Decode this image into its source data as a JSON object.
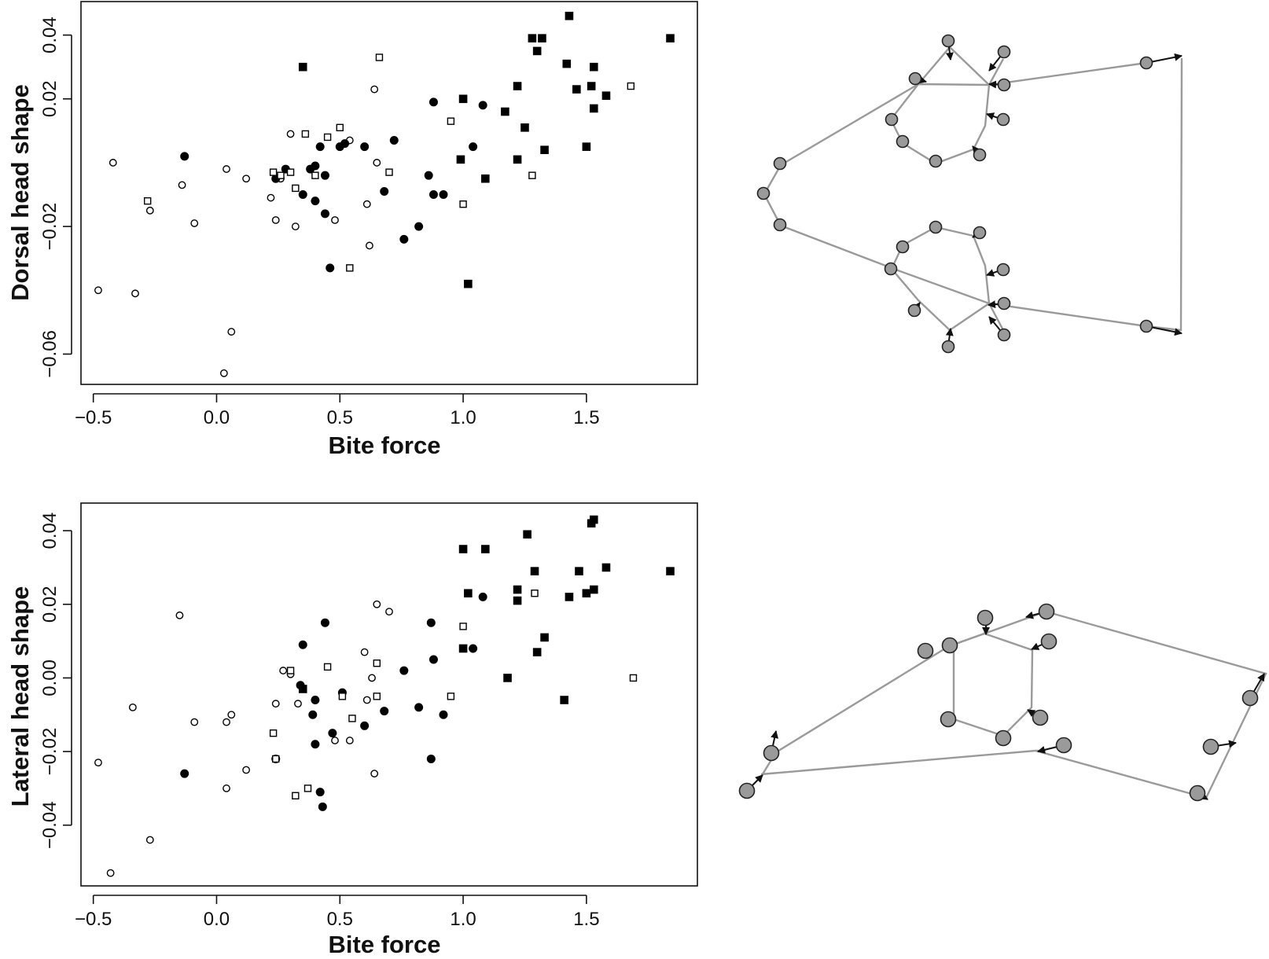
{
  "chart_data": [
    {
      "type": "scatter",
      "xlabel": "Bite force",
      "ylabel": "Dorsal head shape",
      "xlim": [
        -0.55,
        1.95
      ],
      "ylim": [
        -0.0695,
        0.0505
      ],
      "xticks": [
        "−0.5",
        "0.0",
        "0.5",
        "1.0",
        "1.5"
      ],
      "xtick_values": [
        -0.5,
        0,
        0.5,
        1.0,
        1.5
      ],
      "yticks": [
        "−0.06",
        "−0.02",
        "0.02",
        "0.04"
      ],
      "ytick_values": [
        -0.06,
        -0.02,
        0.02,
        0.04
      ],
      "grid": false,
      "marker_styles": {
        "open-circle": {
          "shape": "circle",
          "filled": false
        },
        "filled-circle": {
          "shape": "circle",
          "filled": true
        },
        "open-square": {
          "shape": "square",
          "filled": false
        },
        "filled-square": {
          "shape": "square",
          "filled": true
        }
      },
      "series": [
        {
          "marker": "open-circle",
          "points": [
            [
              -0.48,
              -0.04
            ],
            [
              -0.42,
              0.0
            ],
            [
              -0.33,
              -0.041
            ],
            [
              -0.27,
              -0.015
            ],
            [
              -0.14,
              -0.007
            ],
            [
              -0.09,
              -0.019
            ],
            [
              0.03,
              -0.066
            ],
            [
              0.04,
              -0.002
            ],
            [
              0.06,
              -0.053
            ],
            [
              0.12,
              -0.005
            ],
            [
              0.24,
              -0.018
            ],
            [
              0.26,
              -0.005
            ],
            [
              0.3,
              0.009
            ],
            [
              0.32,
              -0.02
            ],
            [
              0.48,
              -0.018
            ],
            [
              0.54,
              0.007
            ],
            [
              0.61,
              -0.013
            ],
            [
              0.62,
              -0.026
            ],
            [
              0.64,
              0.023
            ],
            [
              0.65,
              0.0
            ],
            [
              0.22,
              -0.011
            ]
          ]
        },
        {
          "marker": "filled-circle",
          "points": [
            [
              -0.13,
              0.002
            ],
            [
              0.24,
              -0.005
            ],
            [
              0.28,
              -0.002
            ],
            [
              0.35,
              -0.01
            ],
            [
              0.38,
              -0.002
            ],
            [
              0.4,
              -0.001
            ],
            [
              0.4,
              -0.012
            ],
            [
              0.42,
              0.005
            ],
            [
              0.44,
              -0.004
            ],
            [
              0.44,
              -0.016
            ],
            [
              0.46,
              -0.033
            ],
            [
              0.5,
              0.005
            ],
            [
              0.52,
              0.006
            ],
            [
              0.6,
              0.005
            ],
            [
              0.68,
              -0.009
            ],
            [
              0.72,
              0.007
            ],
            [
              0.76,
              -0.024
            ],
            [
              0.82,
              -0.02
            ],
            [
              0.86,
              -0.004
            ],
            [
              0.88,
              0.019
            ],
            [
              0.88,
              -0.01
            ],
            [
              0.92,
              -0.01
            ],
            [
              1.04,
              0.005
            ],
            [
              1.08,
              0.018
            ]
          ]
        },
        {
          "marker": "open-square",
          "points": [
            [
              -0.28,
              -0.012
            ],
            [
              0.23,
              -0.003
            ],
            [
              0.26,
              -0.004
            ],
            [
              0.3,
              -0.003
            ],
            [
              0.32,
              -0.008
            ],
            [
              0.36,
              0.009
            ],
            [
              0.4,
              -0.004
            ],
            [
              0.45,
              0.008
            ],
            [
              0.5,
              0.011
            ],
            [
              0.54,
              -0.033
            ],
            [
              0.66,
              0.033
            ],
            [
              0.7,
              -0.003
            ],
            [
              0.95,
              0.013
            ],
            [
              1.0,
              -0.013
            ],
            [
              1.28,
              -0.004
            ],
            [
              1.68,
              0.024
            ]
          ]
        },
        {
          "marker": "filled-square",
          "points": [
            [
              0.35,
              0.03
            ],
            [
              0.99,
              0.001
            ],
            [
              1.0,
              0.02
            ],
            [
              1.02,
              -0.038
            ],
            [
              1.09,
              -0.005
            ],
            [
              1.17,
              0.016
            ],
            [
              1.22,
              0.024
            ],
            [
              1.22,
              0.001
            ],
            [
              1.25,
              0.011
            ],
            [
              1.28,
              0.039
            ],
            [
              1.3,
              0.035
            ],
            [
              1.32,
              0.039
            ],
            [
              1.33,
              0.004
            ],
            [
              1.42,
              0.031
            ],
            [
              1.43,
              0.046
            ],
            [
              1.46,
              0.023
            ],
            [
              1.5,
              0.005
            ],
            [
              1.52,
              0.024
            ],
            [
              1.53,
              0.03
            ],
            [
              1.53,
              0.017
            ],
            [
              1.58,
              0.021
            ],
            [
              1.84,
              0.039
            ]
          ]
        }
      ]
    },
    {
      "type": "scatter",
      "xlabel": "Bite force",
      "ylabel": "Lateral head shape",
      "xlim": [
        -0.55,
        1.95
      ],
      "ylim": [
        -0.0565,
        0.0475
      ],
      "xticks": [
        "−0.5",
        "0.0",
        "0.5",
        "1.0",
        "1.5"
      ],
      "xtick_values": [
        -0.5,
        0,
        0.5,
        1.0,
        1.5
      ],
      "yticks": [
        "−0.04",
        "−0.02",
        "0.00",
        "0.02",
        "0.04"
      ],
      "ytick_values": [
        -0.04,
        -0.02,
        0.0,
        0.02,
        0.04
      ],
      "grid": false,
      "marker_styles": {
        "open-circle": {
          "shape": "circle",
          "filled": false
        },
        "filled-circle": {
          "shape": "circle",
          "filled": true
        },
        "open-square": {
          "shape": "square",
          "filled": false
        },
        "filled-square": {
          "shape": "square",
          "filled": true
        }
      },
      "series": [
        {
          "marker": "open-circle",
          "points": [
            [
              -0.48,
              -0.023
            ],
            [
              -0.43,
              -0.053
            ],
            [
              -0.34,
              -0.008
            ],
            [
              -0.27,
              -0.044
            ],
            [
              -0.15,
              0.017
            ],
            [
              -0.09,
              -0.012
            ],
            [
              0.04,
              -0.012
            ],
            [
              0.06,
              -0.01
            ],
            [
              0.04,
              -0.03
            ],
            [
              0.12,
              -0.025
            ],
            [
              0.24,
              -0.007
            ],
            [
              0.27,
              0.002
            ],
            [
              0.3,
              0.001
            ],
            [
              0.33,
              -0.007
            ],
            [
              0.48,
              -0.017
            ],
            [
              0.54,
              -0.017
            ],
            [
              0.6,
              0.007
            ],
            [
              0.61,
              -0.006
            ],
            [
              0.63,
              0.0
            ],
            [
              0.64,
              -0.026
            ],
            [
              0.65,
              0.02
            ],
            [
              0.7,
              0.018
            ]
          ]
        },
        {
          "marker": "filled-circle",
          "points": [
            [
              -0.13,
              -0.026
            ],
            [
              0.24,
              -0.022
            ],
            [
              0.35,
              0.009
            ],
            [
              0.34,
              -0.002
            ],
            [
              0.39,
              -0.01
            ],
            [
              0.4,
              -0.006
            ],
            [
              0.4,
              -0.018
            ],
            [
              0.42,
              -0.031
            ],
            [
              0.44,
              0.015
            ],
            [
              0.43,
              -0.035
            ],
            [
              0.47,
              -0.015
            ],
            [
              0.51,
              -0.004
            ],
            [
              0.6,
              -0.013
            ],
            [
              0.68,
              -0.009
            ],
            [
              0.76,
              0.002
            ],
            [
              0.82,
              -0.008
            ],
            [
              0.87,
              0.015
            ],
            [
              0.88,
              0.005
            ],
            [
              0.87,
              -0.022
            ],
            [
              0.92,
              -0.01
            ],
            [
              1.04,
              0.008
            ],
            [
              1.08,
              0.022
            ]
          ]
        },
        {
          "marker": "open-square",
          "points": [
            [
              0.23,
              -0.015
            ],
            [
              0.24,
              -0.022
            ],
            [
              0.3,
              0.002
            ],
            [
              0.32,
              -0.032
            ],
            [
              0.37,
              -0.03
            ],
            [
              0.45,
              0.003
            ],
            [
              0.51,
              -0.005
            ],
            [
              0.55,
              -0.011
            ],
            [
              0.65,
              0.004
            ],
            [
              0.65,
              -0.005
            ],
            [
              0.95,
              -0.005
            ],
            [
              1.0,
              0.014
            ],
            [
              1.29,
              0.023
            ],
            [
              1.69,
              0.0
            ]
          ]
        },
        {
          "marker": "filled-square",
          "points": [
            [
              0.35,
              -0.003
            ],
            [
              1.0,
              0.035
            ],
            [
              1.0,
              0.008
            ],
            [
              1.02,
              0.023
            ],
            [
              1.09,
              0.035
            ],
            [
              1.18,
              0.0
            ],
            [
              1.22,
              0.024
            ],
            [
              1.22,
              0.021
            ],
            [
              1.26,
              0.039
            ],
            [
              1.29,
              0.029
            ],
            [
              1.3,
              0.007
            ],
            [
              1.33,
              0.011
            ],
            [
              1.41,
              -0.006
            ],
            [
              1.43,
              0.022
            ],
            [
              1.47,
              0.029
            ],
            [
              1.5,
              0.023
            ],
            [
              1.52,
              0.042
            ],
            [
              1.53,
              0.043
            ],
            [
              1.53,
              0.024
            ],
            [
              1.58,
              0.03
            ],
            [
              1.84,
              0.029
            ]
          ]
        }
      ]
    }
  ]
}
